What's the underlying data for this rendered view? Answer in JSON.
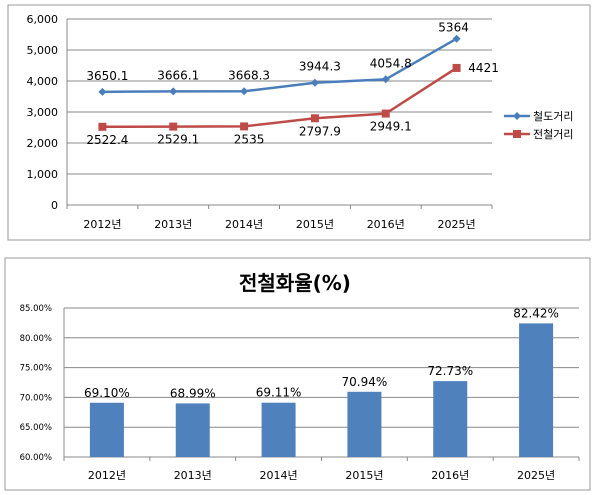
{
  "chart_data": [
    {
      "type": "line",
      "categories": [
        "2012년",
        "2013년",
        "2014년",
        "2015년",
        "2016년",
        "2025년"
      ],
      "series": [
        {
          "name": "철도거리",
          "color": "#4a7ebb",
          "marker": "diamond",
          "values": [
            3650.1,
            3666.1,
            3668.3,
            3944.3,
            4054.8,
            5364
          ],
          "labels": [
            "3650.1",
            "3666.1",
            "3668.3",
            "3944.3",
            "4054.8",
            "5364"
          ]
        },
        {
          "name": "전철거리",
          "color": "#be4b48",
          "marker": "square",
          "values": [
            2522.4,
            2529.1,
            2535,
            2797.9,
            2949.1,
            4421
          ],
          "labels": [
            "2522.4",
            "2529.1",
            "2535",
            "2797.9",
            "2949.1",
            "4421"
          ]
        }
      ],
      "ylim": [
        0,
        6000
      ],
      "yticks": [
        "0",
        "1,000",
        "2,000",
        "3,000",
        "4,000",
        "5,000",
        "6,000"
      ],
      "grid": true,
      "legend": "right"
    },
    {
      "type": "bar",
      "title": "전철화율(%)",
      "categories": [
        "2012년",
        "2013년",
        "2014년",
        "2015년",
        "2016년",
        "2025년"
      ],
      "values": [
        69.1,
        68.99,
        69.11,
        70.94,
        72.73,
        82.42
      ],
      "labels": [
        "69.10%",
        "68.99%",
        "69.11%",
        "70.94%",
        "72.73%",
        "82.42%"
      ],
      "color": "#4f81bd",
      "ylim": [
        60,
        85
      ],
      "yticks": [
        "60.00%",
        "65.00%",
        "70.00%",
        "75.00%",
        "80.00%",
        "85.00%"
      ],
      "grid": true
    }
  ]
}
